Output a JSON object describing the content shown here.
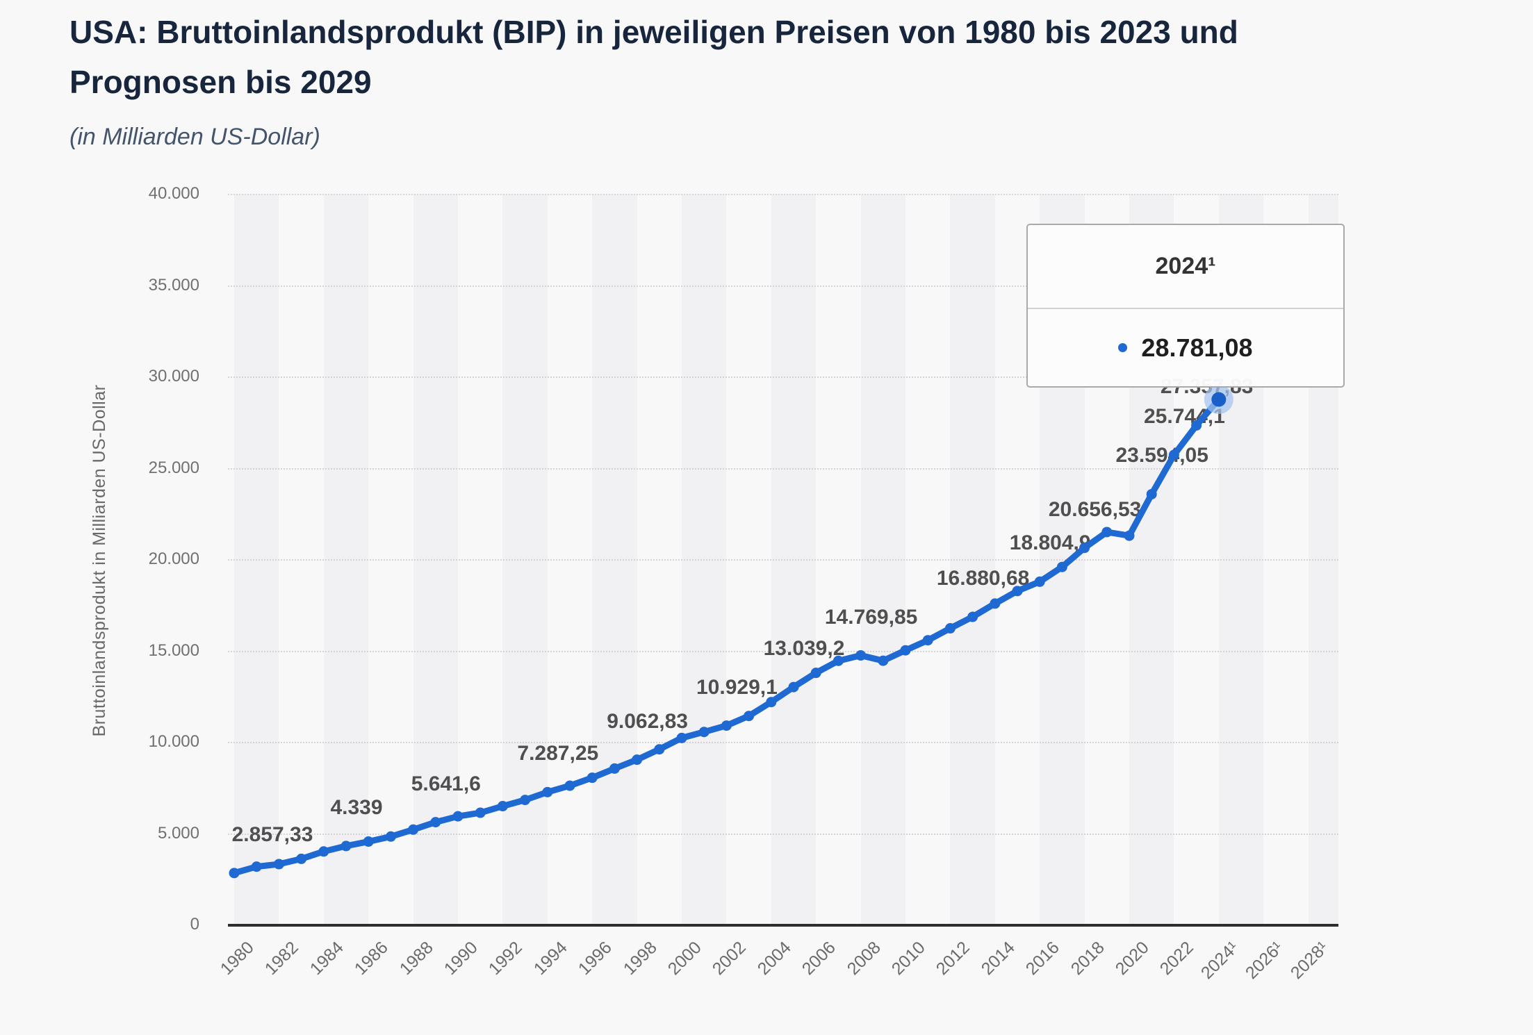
{
  "header": {
    "title_line1": "USA: Bruttoinlandsprodukt (BIP) in jeweiligen Preisen von 1980 bis 2023 und",
    "title_line2": "Prognosen bis 2029",
    "subtitle": "(in Milliarden US-Dollar)"
  },
  "tooltip": {
    "title": "2024¹",
    "value": "28.781,08",
    "marker_color": "#1e69d2"
  },
  "chart_data": {
    "type": "line",
    "title": "USA: Bruttoinlandsprodukt (BIP) in jeweiligen Preisen von 1980 bis 2023 und Prognosen bis 2029",
    "subtitle": "(in Milliarden US-Dollar)",
    "ylabel": "Bruttoinlandsprodukt in Milliarden US-Dollar",
    "xlabel": "",
    "ylim": [
      0,
      40000
    ],
    "xlim": [
      1980,
      2029
    ],
    "grid": "horizontal-dotted",
    "legend": "none",
    "line_color": "#1e69d2",
    "y_ticks": {
      "labels": [
        "0",
        "5.000",
        "10.000",
        "15.000",
        "20.000",
        "25.000",
        "30.000",
        "35.000",
        "40.000"
      ],
      "values": [
        0,
        5000,
        10000,
        15000,
        20000,
        25000,
        30000,
        35000,
        40000
      ]
    },
    "x_ticks": {
      "labels": [
        "1980",
        "1982",
        "1984",
        "1986",
        "1988",
        "1990",
        "1992",
        "1994",
        "1996",
        "1998",
        "2000",
        "2002",
        "2004",
        "2006",
        "2008",
        "2010",
        "2012",
        "2014",
        "2016",
        "2018",
        "2020",
        "2022",
        "2024¹",
        "2026¹",
        "2028¹"
      ],
      "years": [
        1980,
        1982,
        1984,
        1986,
        1988,
        1990,
        1992,
        1994,
        1996,
        1998,
        2000,
        2002,
        2004,
        2006,
        2008,
        2010,
        2012,
        2014,
        2016,
        2018,
        2020,
        2022,
        2024,
        2026,
        2028
      ]
    },
    "series": [
      {
        "x": [
          1980,
          1981,
          1982,
          1983,
          1984,
          1985,
          1986,
          1987,
          1988,
          1989,
          1990,
          1991,
          1992,
          1993,
          1994,
          1995,
          1996,
          1997,
          1998,
          1999,
          2000,
          2001,
          2002,
          2003,
          2004,
          2005,
          2006,
          2007,
          2008,
          2009,
          2010,
          2011,
          2012,
          2013,
          2014,
          2015,
          2016,
          2017,
          2018,
          2019,
          2020,
          2021,
          2022,
          2023,
          2024
        ],
        "values": [
          2857.33,
          3207.03,
          3343.79,
          3634.04,
          4037.61,
          4339,
          4579.63,
          4855.22,
          5236.44,
          5641.6,
          5963.14,
          6158.13,
          6520.33,
          6858.56,
          7287.25,
          7639.75,
          8073.12,
          8577.55,
          9062.83,
          9631.17,
          10250.95,
          10581.93,
          10929.1,
          11456.45,
          12217.19,
          13039.2,
          13815.58,
          14474.25,
          14769.85,
          14478.06,
          15048.97,
          15599.73,
          16253.97,
          16880.68,
          17608.14,
          18295.02,
          18804.9,
          19612.1,
          20656.53,
          21521.4,
          21322.95,
          23594.05,
          25744.11,
          27357.83,
          28781.08
        ]
      }
    ],
    "data_labels": [
      {
        "year": 1980,
        "text": "2.857,33"
      },
      {
        "year": 1985,
        "text": "4.339"
      },
      {
        "year": 1989,
        "text": "5.641,6"
      },
      {
        "year": 1994,
        "text": "7.287,25"
      },
      {
        "year": 1998,
        "text": "9.062,83"
      },
      {
        "year": 2002,
        "text": "10.929,1"
      },
      {
        "year": 2005,
        "text": "13.039,2"
      },
      {
        "year": 2008,
        "text": "14.769,85"
      },
      {
        "year": 2013,
        "text": "16.880,68"
      },
      {
        "year": 2016,
        "text": "18.804,9"
      },
      {
        "year": 2018,
        "text": "20.656,53"
      },
      {
        "year": 2021,
        "text": "23.594,05"
      },
      {
        "year": 2022,
        "text": "25.744,1"
      },
      {
        "year": 2023,
        "text": "27.357,83"
      }
    ],
    "highlight": {
      "year": 2024,
      "value": 28781.08,
      "tooltip_value_label": "28.781,08"
    }
  }
}
